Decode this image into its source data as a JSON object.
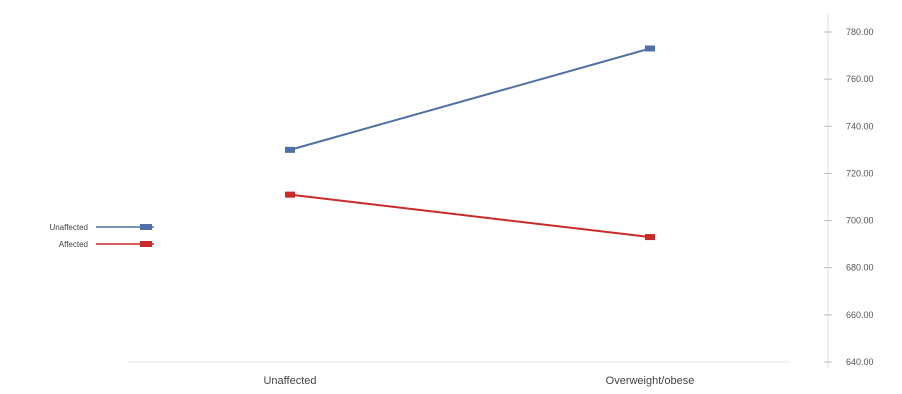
{
  "chart_data": {
    "type": "line",
    "title": "",
    "xlabel": "",
    "ylabel": "",
    "categories": [
      "Unaffected",
      "Overweight/obese"
    ],
    "series": [
      {
        "name": "Unaffected",
        "color": "#4f6fa8",
        "values": [
          730,
          773
        ]
      },
      {
        "name": "Affected",
        "color": "#cc2a2a",
        "values": [
          711,
          693
        ]
      }
    ],
    "ylim": [
      640,
      780
    ],
    "yticks": [
      640,
      660,
      680,
      700,
      720,
      740,
      760,
      780
    ],
    "ytick_labels": [
      "640.00",
      "660.00",
      "680.00",
      "700.00",
      "720.00",
      "740.00",
      "760.00",
      "780.00"
    ],
    "grid": false,
    "legend_placement": "left"
  }
}
